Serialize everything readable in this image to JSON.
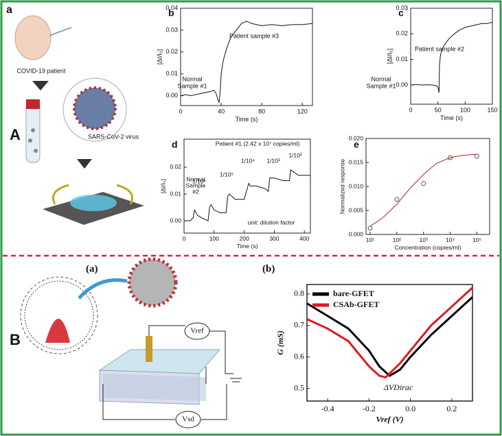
{
  "labels": {
    "panel_a": "a",
    "panel_A": "A",
    "patient": "COVID-19 patient",
    "virus": "SARS-CoV-2 virus",
    "panel_B": "B",
    "sub_a": "(a)",
    "sub_b": "(b)",
    "vref": "Vref",
    "vsd": "Vsd"
  },
  "chart_data": [
    {
      "type": "line",
      "panel": "b",
      "xlabel": "Time (s)",
      "ylabel": "[ΔI/I₀]",
      "xlim": [
        0,
        130
      ],
      "ylim": [
        -0.0045,
        0.04
      ],
      "xticks": [
        0,
        40,
        80,
        120
      ],
      "yticks": [
        {
          "value": 0,
          "label": "0.00"
        },
        0.01,
        0.02,
        0.03,
        {
          "value": 0.04,
          "label": "0.04"
        }
      ],
      "annotations": [
        "Normal",
        "Sample #1",
        "Patient sample #3"
      ],
      "series": [
        {
          "color": "#111111",
          "x": [
            0,
            5,
            10,
            15,
            20,
            25,
            30,
            33,
            35,
            37,
            38,
            39,
            40,
            42,
            45,
            48,
            50,
            55,
            60,
            65,
            70,
            80,
            90,
            100,
            110,
            120,
            130
          ],
          "values": [
            0,
            0.0005,
            0,
            0.0005,
            0.001,
            0.0015,
            0.002,
            0.0025,
            0.001,
            -0.002,
            -0.003,
            0.002,
            0.01,
            0.016,
            0.021,
            0.025,
            0.027,
            0.03,
            0.033,
            0.034,
            0.033,
            0.032,
            0.0325,
            0.032,
            0.0325,
            0.0325,
            0.033
          ]
        }
      ]
    },
    {
      "type": "line",
      "panel": "c",
      "xlabel": "Time (s)",
      "ylabel": "[ΔI/I₀]",
      "xlim": [
        0,
        150
      ],
      "ylim": [
        -0.0075,
        0.03
      ],
      "xticks": [
        0,
        50,
        100,
        150
      ],
      "yticks": [
        {
          "value": 0,
          "label": "0.00"
        },
        0.01,
        0.02,
        0.03
      ],
      "annotations": [
        "Normal",
        "Sample #1",
        "Patient sample #2"
      ],
      "series": [
        {
          "color": "#111111",
          "x": [
            0,
            10,
            20,
            30,
            40,
            48,
            50,
            52,
            53,
            55,
            60,
            70,
            80,
            90,
            100,
            110,
            120,
            130,
            140,
            150
          ],
          "values": [
            0,
            0.0002,
            0,
            0.0001,
            0,
            -0.0003,
            -0.001,
            -0.003,
            0.008,
            0.012,
            0.015,
            0.018,
            0.02,
            0.0215,
            0.0225,
            0.023,
            0.0235,
            0.024,
            0.024,
            0.0245
          ]
        }
      ]
    },
    {
      "type": "line",
      "panel": "d",
      "xlabel": "Time (s)",
      "ylabel": "[ΔI/I₀]",
      "xlim": [
        0,
        420
      ],
      "ylim": [
        -0.0046,
        0.0305
      ],
      "xticks": [
        0,
        100,
        200,
        300,
        400
      ],
      "yticks": [
        {
          "value": 0,
          "label": "0.00"
        },
        0.01,
        0.02
      ],
      "annotations": [
        "Patient #1 (2.42 x 10⁷ copies/ml)",
        "Normal",
        "Sample",
        "#2",
        "1/10⁶",
        "1/10⁵",
        "1/10⁴",
        "1/10³",
        "1/10²",
        "unit: dilution factor"
      ],
      "series": [
        {
          "color": "#111111",
          "x": [
            0,
            20,
            30,
            35,
            45,
            60,
            80,
            85,
            90,
            100,
            120,
            140,
            145,
            150,
            170,
            200,
            215,
            220,
            240,
            270,
            280,
            285,
            300,
            330,
            350,
            355,
            380,
            400,
            420
          ],
          "values": [
            0,
            0,
            0.001,
            0.004,
            0.002,
            0.001,
            0,
            0.005,
            0.006,
            0.004,
            0.003,
            0.003,
            0.009,
            0.01,
            0.008,
            0.008,
            0.014,
            0.013,
            0.013,
            0.012,
            0.011,
            0.016,
            0.016,
            0.015,
            0.015,
            0.019,
            0.017,
            0.017,
            0.017
          ]
        }
      ]
    },
    {
      "type": "scatter",
      "panel": "e",
      "xlabel": "Concentration (copies/ml)",
      "ylabel": "Normalized response",
      "xscale": "log",
      "xlim": [
        7,
        300000
      ],
      "ylim": [
        0,
        0.02
      ],
      "xticks": [
        {
          "value": 10,
          "label": "10¹"
        },
        {
          "value": 100,
          "label": "10²"
        },
        {
          "value": 1000,
          "label": "10³"
        },
        {
          "value": 10000,
          "label": "10⁴"
        },
        {
          "value": 100000,
          "label": "10⁵"
        }
      ],
      "yticks": [
        {
          "value": 0,
          "label": "0.000"
        },
        0.005,
        {
          "value": 0.01,
          "label": "0.010"
        },
        0.015,
        {
          "value": 0.02,
          "label": "0.020"
        }
      ],
      "series": [
        {
          "kind": "points",
          "color": "#555555",
          "x": [
            10,
            100,
            1000,
            10000,
            100000
          ],
          "values": [
            0.0013,
            0.0073,
            0.0106,
            0.016,
            0.0163
          ]
        },
        {
          "kind": "fit",
          "color": "#b22222",
          "x": [
            10,
            30,
            100,
            300,
            1000,
            3000,
            10000,
            30000,
            100000
          ],
          "values": [
            0.0017,
            0.0035,
            0.0063,
            0.0095,
            0.0125,
            0.0148,
            0.016,
            0.0165,
            0.0167
          ]
        }
      ]
    },
    {
      "type": "line",
      "xlabel": "Vref (V)",
      "ylabel": "G (mS)",
      "xlim": [
        -0.5,
        0.3
      ],
      "ylim": [
        0.46,
        0.83
      ],
      "xticks": [
        -0.4,
        -0.2,
        {
          "value": 0,
          "label": "0.0"
        },
        0.2
      ],
      "yticks": [
        0.5,
        0.6,
        0.7,
        0.8
      ],
      "annotations": [
        "ΔVDirac"
      ],
      "legend": "upper left",
      "series": [
        {
          "name": "bare-GFET",
          "color": "#000000",
          "x": [
            -0.5,
            -0.4,
            -0.3,
            -0.2,
            -0.15,
            -0.1,
            -0.05,
            0,
            0.1,
            0.2,
            0.3
          ],
          "values": [
            0.77,
            0.73,
            0.69,
            0.62,
            0.57,
            0.54,
            0.56,
            0.6,
            0.67,
            0.73,
            0.79
          ]
        },
        {
          "name": "CSAb-GFET",
          "color": "#e0191f",
          "x": [
            -0.5,
            -0.4,
            -0.3,
            -0.2,
            -0.15,
            -0.12,
            -0.05,
            0,
            0.1,
            0.2,
            0.3
          ],
          "values": [
            0.72,
            0.69,
            0.65,
            0.57,
            0.54,
            0.535,
            0.58,
            0.62,
            0.7,
            0.76,
            0.82
          ]
        }
      ]
    }
  ]
}
